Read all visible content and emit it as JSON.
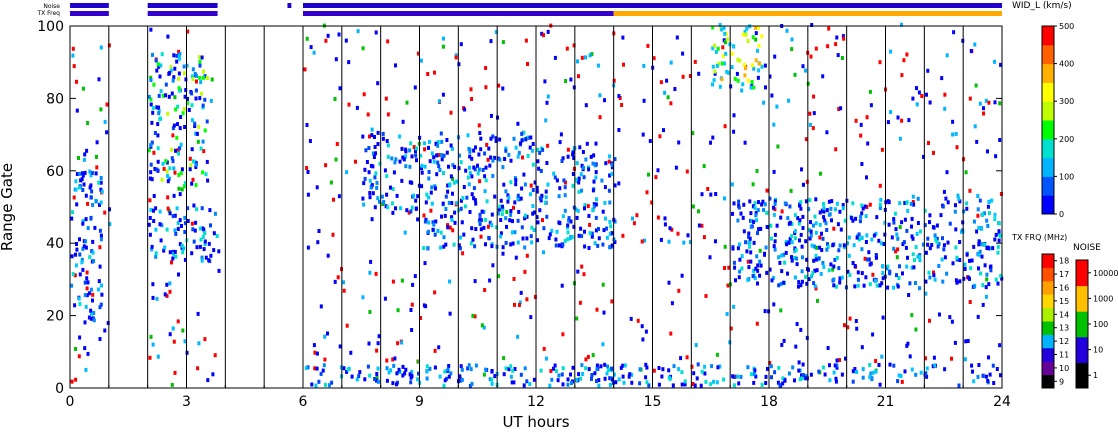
{
  "chart_data": {
    "type": "heatmap",
    "xlabel": "UT hours",
    "ylabel": "Range Gate",
    "xlim": [
      0,
      24
    ],
    "ylim": [
      0,
      100
    ],
    "xticks": [
      0,
      3,
      6,
      9,
      12,
      15,
      18,
      21,
      24
    ],
    "yticks": [
      0,
      20,
      40,
      60,
      80,
      100
    ],
    "hour_lines": [
      1,
      2,
      3,
      4,
      5,
      6,
      7,
      8,
      9,
      10,
      11,
      12,
      13,
      14,
      15,
      16,
      17,
      18,
      19,
      20,
      21,
      22,
      23
    ],
    "data_spans_hours": [
      [
        0.0,
        1.0
      ],
      [
        2.0,
        3.8
      ],
      [
        6.0,
        24.0
      ]
    ],
    "top_strip_labels": [
      "Noise",
      "TX Freq"
    ],
    "noise_strip_spans": [
      [
        0.0,
        1.0
      ],
      [
        2.0,
        3.8
      ],
      [
        5.6,
        5.7
      ],
      [
        6.0,
        24.0
      ]
    ],
    "tx_freq_strip": [
      {
        "from": 0.0,
        "to": 1.0,
        "value": "11"
      },
      {
        "from": 2.0,
        "to": 3.8,
        "value": "11"
      },
      {
        "from": 6.0,
        "to": 14.0,
        "value": "11"
      },
      {
        "from": 14.0,
        "to": 24.0,
        "value": "15"
      }
    ],
    "echo_regions": [
      {
        "x": [
          0.0,
          0.8
        ],
        "y": [
          18,
          60
        ],
        "value": "0-100"
      },
      {
        "x": [
          2.0,
          3.8
        ],
        "y": [
          34,
          50
        ],
        "value": "0-100"
      },
      {
        "x": [
          2.0,
          3.5
        ],
        "y": [
          55,
          92
        ],
        "value": "0-200"
      },
      {
        "x": [
          7.5,
          9.0
        ],
        "y": [
          48,
          70
        ],
        "value": "0-100"
      },
      {
        "x": [
          9.0,
          12.0
        ],
        "y": [
          38,
          70
        ],
        "value": "0-100"
      },
      {
        "x": [
          12.0,
          14.0
        ],
        "y": [
          38,
          66
        ],
        "value": "0-100"
      },
      {
        "x": [
          16.5,
          17.8
        ],
        "y": [
          82,
          100
        ],
        "value": "100-400"
      },
      {
        "x": [
          17.0,
          24.0
        ],
        "y": [
          27,
          52
        ],
        "value": "0-100"
      },
      {
        "x": [
          6.0,
          24.0
        ],
        "y": [
          0,
          6
        ],
        "value": "0-100"
      }
    ],
    "colorbars": [
      {
        "title": "WID_L (km/s)",
        "ticks": [
          "0",
          "100",
          "200",
          "300",
          "400",
          "500"
        ],
        "range": [
          0,
          500
        ],
        "colors": [
          "#0000ff",
          "#0055ff",
          "#00b4ff",
          "#00e0d0",
          "#00ff00",
          "#c0ff00",
          "#ffff00",
          "#ffb000",
          "#ff6000",
          "#ff0000"
        ]
      },
      {
        "title": "TX FRQ (MHz)",
        "ticks": [
          "9",
          "10",
          "11",
          "12",
          "13",
          "14",
          "15",
          "16",
          "17",
          "18"
        ],
        "colors": [
          "#000000",
          "#660099",
          "#2200dd",
          "#00b4ff",
          "#00c000",
          "#aaee00",
          "#ffd700",
          "#ffa000",
          "#ff5000",
          "#ff0000"
        ]
      },
      {
        "title": "NOISE",
        "ticks": [
          "1",
          "10",
          "100",
          "1000",
          "10000"
        ],
        "colors": [
          "#000000",
          "#2200dd",
          "#00c000",
          "#ffc000",
          "#ff0000"
        ]
      }
    ]
  },
  "colors": {
    "frame": "#000000",
    "background": "#ffffff",
    "noise_strip": "#2200cc",
    "tx_11": "#3300cc",
    "tx_15": "#ffaa00"
  }
}
